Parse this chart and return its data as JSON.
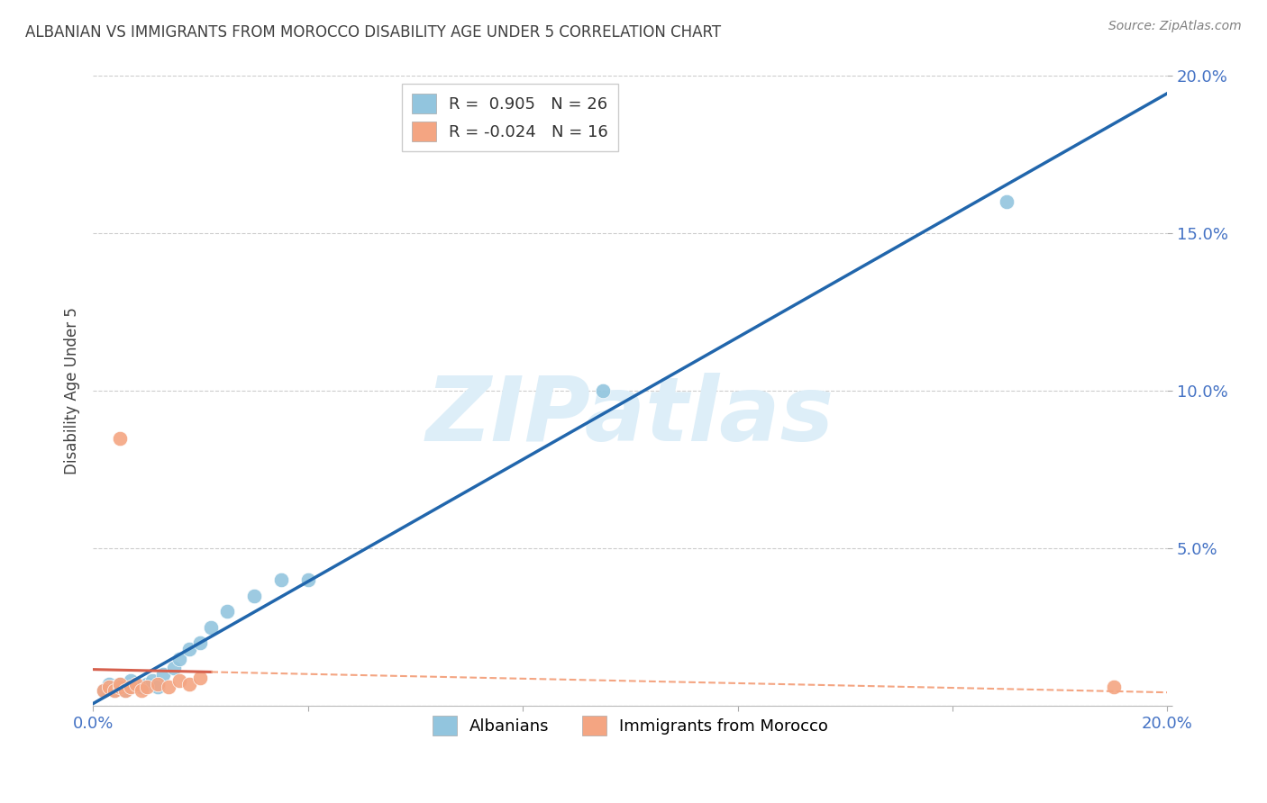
{
  "title": "ALBANIAN VS IMMIGRANTS FROM MOROCCO DISABILITY AGE UNDER 5 CORRELATION CHART",
  "source": "Source: ZipAtlas.com",
  "ylabel": "Disability Age Under 5",
  "xlim": [
    0.0,
    0.2
  ],
  "ylim": [
    0.0,
    0.2
  ],
  "albanians_x": [
    0.002,
    0.003,
    0.004,
    0.004,
    0.005,
    0.005,
    0.006,
    0.007,
    0.007,
    0.008,
    0.009,
    0.01,
    0.011,
    0.012,
    0.013,
    0.015,
    0.016,
    0.018,
    0.02,
    0.022,
    0.025,
    0.03,
    0.035,
    0.04,
    0.095,
    0.17
  ],
  "albanians_y": [
    0.005,
    0.007,
    0.005,
    0.006,
    0.006,
    0.007,
    0.005,
    0.006,
    0.008,
    0.007,
    0.006,
    0.007,
    0.008,
    0.006,
    0.01,
    0.012,
    0.015,
    0.018,
    0.02,
    0.025,
    0.03,
    0.035,
    0.04,
    0.04,
    0.1,
    0.16
  ],
  "morocco_x": [
    0.002,
    0.003,
    0.004,
    0.005,
    0.005,
    0.006,
    0.007,
    0.008,
    0.009,
    0.01,
    0.012,
    0.014,
    0.016,
    0.018,
    0.02,
    0.19
  ],
  "morocco_y": [
    0.005,
    0.006,
    0.005,
    0.006,
    0.007,
    0.005,
    0.006,
    0.007,
    0.005,
    0.006,
    0.007,
    0.006,
    0.008,
    0.007,
    0.009,
    0.006
  ],
  "morocco_outlier_x": [
    0.005
  ],
  "morocco_outlier_y": [
    0.085
  ],
  "R_albanian": 0.905,
  "N_albanian": 26,
  "R_morocco": -0.024,
  "N_morocco": 16,
  "albanian_color": "#92c5de",
  "albania_line_color": "#2166ac",
  "morocco_color": "#f4a582",
  "morocco_line_color": "#d6604d",
  "morocco_line_dash_color": "#f4a582",
  "background_color": "#ffffff",
  "grid_color": "#cccccc",
  "watermark_color": "#ddeef8",
  "tick_color": "#4472c4",
  "title_color": "#404040",
  "source_color": "#808080",
  "ylabel_color": "#404040"
}
